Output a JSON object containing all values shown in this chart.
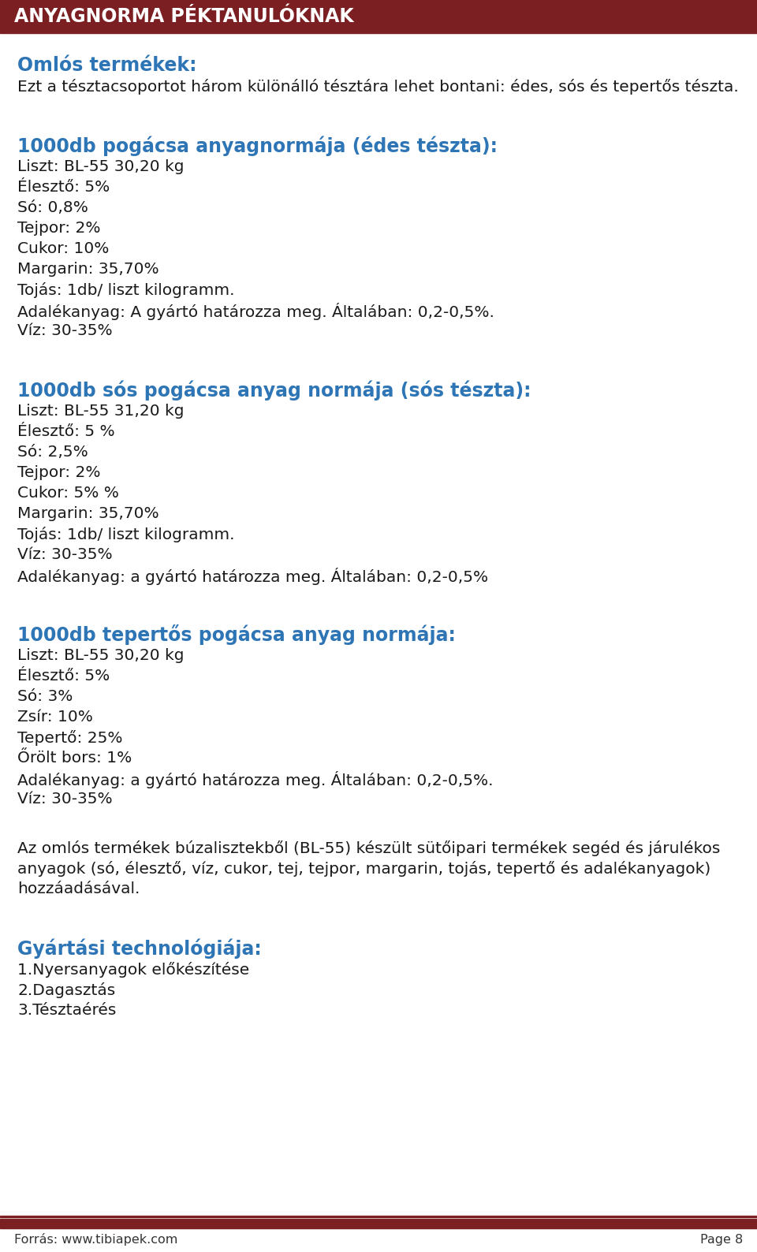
{
  "title": "ANYAGNORMA PÉKTANULÓKNAK",
  "title_bg": "#7B1F22",
  "title_color": "#FFFFFF",
  "header_font_size": 17,
  "body_font_size": 14.5,
  "section_font_size": 17,
  "blue_color": "#2E75B6",
  "dark_color": "#1a1a1a",
  "footer_color": "#333333",
  "bg_color": "#FFFFFF",
  "footer_bar_color": "#7B1F22",
  "footer_text": "Forrás: www.tibiapek.com",
  "footer_page": "Page 8",
  "sections": [
    {
      "type": "heading",
      "text": "Omlós termékek:",
      "color": "#2E75B6"
    },
    {
      "type": "body",
      "text": "Ezt a tésztacsoportot három különálló tésztára lehet bontani: édes, sós és tepertős tészta.",
      "color": "#1a1a1a"
    },
    {
      "type": "spacer_large"
    },
    {
      "type": "heading",
      "text": "1000db pogácsa anyagnormája (édes tészta):",
      "color": "#2E75B6"
    },
    {
      "type": "body",
      "text": "Liszt: BL-55 30,20 kg",
      "color": "#1a1a1a"
    },
    {
      "type": "body",
      "text": "Élesztő: 5%",
      "color": "#1a1a1a"
    },
    {
      "type": "body",
      "text": "Só: 0,8%",
      "color": "#1a1a1a"
    },
    {
      "type": "body",
      "text": "Tejpor: 2%",
      "color": "#1a1a1a"
    },
    {
      "type": "body",
      "text": "Cukor: 10%",
      "color": "#1a1a1a"
    },
    {
      "type": "body",
      "text": "Margarin: 35,70%",
      "color": "#1a1a1a"
    },
    {
      "type": "body",
      "text": "Tojás: 1db/ liszt kilogramm.",
      "color": "#1a1a1a"
    },
    {
      "type": "body",
      "text": "Adalékanyag: A gyártó határozza meg. Általában: 0,2-0,5%.",
      "color": "#1a1a1a"
    },
    {
      "type": "body",
      "text": "Víz: 30-35%",
      "color": "#1a1a1a"
    },
    {
      "type": "spacer_large"
    },
    {
      "type": "heading",
      "text": "1000db sós pogácsa anyag normája (sós tészta):",
      "color": "#2E75B6"
    },
    {
      "type": "body",
      "text": "Liszt: BL-55 31,20 kg",
      "color": "#1a1a1a"
    },
    {
      "type": "body",
      "text": "Élesztő: 5 %",
      "color": "#1a1a1a"
    },
    {
      "type": "body",
      "text": "Só: 2,5%",
      "color": "#1a1a1a"
    },
    {
      "type": "body",
      "text": "Tejpor: 2%",
      "color": "#1a1a1a"
    },
    {
      "type": "body",
      "text": "Cukor: 5% %",
      "color": "#1a1a1a"
    },
    {
      "type": "body",
      "text": "Margarin: 35,70%",
      "color": "#1a1a1a"
    },
    {
      "type": "body",
      "text": "Tojás: 1db/ liszt kilogramm.",
      "color": "#1a1a1a"
    },
    {
      "type": "body",
      "text": "Víz: 30-35%",
      "color": "#1a1a1a"
    },
    {
      "type": "body",
      "text": "Adalékanyag: a gyártó határozza meg. Általában: 0,2-0,5%",
      "color": "#1a1a1a"
    },
    {
      "type": "spacer_large"
    },
    {
      "type": "heading",
      "text": "1000db tepertős pogácsa anyag normája:",
      "color": "#2E75B6"
    },
    {
      "type": "body",
      "text": "Liszt: BL-55 30,20 kg",
      "color": "#1a1a1a"
    },
    {
      "type": "body",
      "text": "Élesztő: 5%",
      "color": "#1a1a1a"
    },
    {
      "type": "body",
      "text": "Só: 3%",
      "color": "#1a1a1a"
    },
    {
      "type": "body",
      "text": "Zsír: 10%",
      "color": "#1a1a1a"
    },
    {
      "type": "body",
      "text": "Tepertő: 25%",
      "color": "#1a1a1a"
    },
    {
      "type": "body",
      "text": "Őrölt bors: 1%",
      "color": "#1a1a1a"
    },
    {
      "type": "body",
      "text": "Adalékanyag: a gyártó határozza meg. Általában: 0,2-0,5%.",
      "color": "#1a1a1a"
    },
    {
      "type": "body",
      "text": "Víz: 30-35%",
      "color": "#1a1a1a"
    },
    {
      "type": "spacer_large"
    },
    {
      "type": "body",
      "text": "Az omlós termékek búzalisztekből (BL-55) készült sütőipari termékek segéd és járulékos",
      "color": "#1a1a1a"
    },
    {
      "type": "body",
      "text": "anyagok (só, élesztő, víz, cukor, tej, tejpor, margarin, tojás, tepertő és adalékanyagok)",
      "color": "#1a1a1a"
    },
    {
      "type": "body",
      "text": "hozzáadásával.",
      "color": "#1a1a1a"
    },
    {
      "type": "spacer_large"
    },
    {
      "type": "heading",
      "text": "Gyártási technológiája:",
      "color": "#2E75B6"
    },
    {
      "type": "body",
      "text": "1.Nyersanyagok előkészítése",
      "color": "#1a1a1a"
    },
    {
      "type": "body",
      "text": "2.Dagasztás",
      "color": "#1a1a1a"
    },
    {
      "type": "body",
      "text": "3.Tésztaérés",
      "color": "#1a1a1a"
    }
  ]
}
